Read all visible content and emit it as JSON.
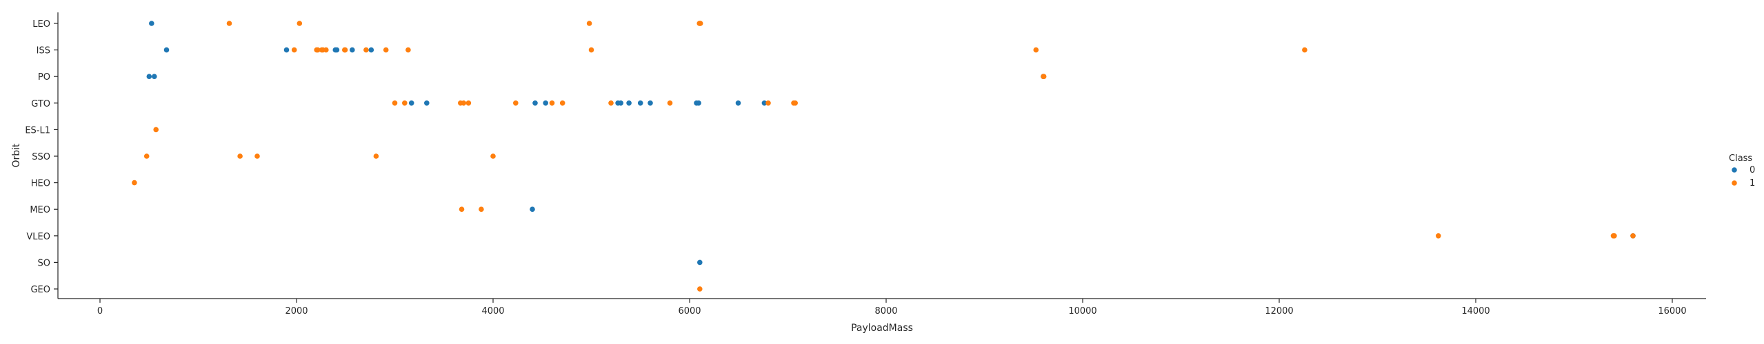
{
  "chart_data": {
    "type": "scatter",
    "title": "",
    "xlabel": "PayloadMass",
    "ylabel": "Orbit",
    "xlim": [
      -2000,
      16400
    ],
    "x_ticks": [
      0,
      2000,
      4000,
      6000,
      8000,
      10000,
      12000,
      14000,
      16000
    ],
    "x_tick_labels": [
      "0",
      "2000",
      "4000",
      "6000",
      "8000",
      "10000",
      "12000",
      "14000",
      "16000"
    ],
    "categories": [
      "LEO",
      "ISS",
      "PO",
      "GTO",
      "ES-L1",
      "SSO",
      "HEO",
      "MEO",
      "VLEO",
      "SO",
      "GEO"
    ],
    "grid": false,
    "legend": {
      "title": "Class",
      "position": "right"
    },
    "colors": {
      "0": "#1f77b4",
      "1": "#ff7f0e"
    },
    "series": [
      {
        "name": "0",
        "points": [
          {
            "x": 525,
            "y": "LEO"
          },
          {
            "x": 677,
            "y": "ISS"
          },
          {
            "x": 1898,
            "y": "ISS"
          },
          {
            "x": 2395,
            "y": "ISS"
          },
          {
            "x": 2410,
            "y": "ISS"
          },
          {
            "x": 2567,
            "y": "ISS"
          },
          {
            "x": 2760,
            "y": "ISS"
          },
          {
            "x": 500,
            "y": "PO"
          },
          {
            "x": 553,
            "y": "PO"
          },
          {
            "x": 9600,
            "y": "PO"
          },
          {
            "x": 3170,
            "y": "GTO"
          },
          {
            "x": 3325,
            "y": "GTO"
          },
          {
            "x": 4428,
            "y": "GTO"
          },
          {
            "x": 4535,
            "y": "GTO"
          },
          {
            "x": 5271,
            "y": "GTO"
          },
          {
            "x": 5300,
            "y": "GTO"
          },
          {
            "x": 5383,
            "y": "GTO"
          },
          {
            "x": 5500,
            "y": "GTO"
          },
          {
            "x": 5600,
            "y": "GTO"
          },
          {
            "x": 6070,
            "y": "GTO"
          },
          {
            "x": 6092,
            "y": "GTO"
          },
          {
            "x": 6495,
            "y": "GTO"
          },
          {
            "x": 6761,
            "y": "GTO"
          },
          {
            "x": 4400,
            "y": "MEO"
          },
          {
            "x": 15600,
            "y": "VLEO"
          },
          {
            "x": 6104,
            "y": "SO"
          }
        ]
      },
      {
        "name": "1",
        "points": [
          {
            "x": 1316,
            "y": "LEO"
          },
          {
            "x": 2030,
            "y": "LEO"
          },
          {
            "x": 4980,
            "y": "LEO"
          },
          {
            "x": 6100,
            "y": "LEO"
          },
          {
            "x": 6105,
            "y": "LEO"
          },
          {
            "x": 6110,
            "y": "LEO"
          },
          {
            "x": 1977,
            "y": "ISS"
          },
          {
            "x": 2205,
            "y": "ISS"
          },
          {
            "x": 2216,
            "y": "ISS"
          },
          {
            "x": 2257,
            "y": "ISS"
          },
          {
            "x": 2268,
            "y": "ISS"
          },
          {
            "x": 2300,
            "y": "ISS"
          },
          {
            "x": 2490,
            "y": "ISS"
          },
          {
            "x": 2495,
            "y": "ISS"
          },
          {
            "x": 2708,
            "y": "ISS"
          },
          {
            "x": 2910,
            "y": "ISS"
          },
          {
            "x": 3136,
            "y": "ISS"
          },
          {
            "x": 5000,
            "y": "ISS"
          },
          {
            "x": 9525,
            "y": "ISS"
          },
          {
            "x": 12259,
            "y": "ISS"
          },
          {
            "x": 9600,
            "y": "PO"
          },
          {
            "x": 9605,
            "y": "PO"
          },
          {
            "x": 3000,
            "y": "GTO"
          },
          {
            "x": 3100,
            "y": "GTO"
          },
          {
            "x": 3669,
            "y": "GTO"
          },
          {
            "x": 3700,
            "y": "GTO"
          },
          {
            "x": 3750,
            "y": "GTO"
          },
          {
            "x": 4230,
            "y": "GTO"
          },
          {
            "x": 4600,
            "y": "GTO"
          },
          {
            "x": 4707,
            "y": "GTO"
          },
          {
            "x": 5200,
            "y": "GTO"
          },
          {
            "x": 5800,
            "y": "GTO"
          },
          {
            "x": 6800,
            "y": "GTO"
          },
          {
            "x": 7060,
            "y": "GTO"
          },
          {
            "x": 7075,
            "y": "GTO"
          },
          {
            "x": 570,
            "y": "ES-L1"
          },
          {
            "x": 475,
            "y": "SSO"
          },
          {
            "x": 1425,
            "y": "SSO"
          },
          {
            "x": 1600,
            "y": "SSO"
          },
          {
            "x": 2810,
            "y": "SSO"
          },
          {
            "x": 4000,
            "y": "SSO"
          },
          {
            "x": 350,
            "y": "HEO"
          },
          {
            "x": 3681,
            "y": "MEO"
          },
          {
            "x": 3880,
            "y": "MEO"
          },
          {
            "x": 13620,
            "y": "VLEO"
          },
          {
            "x": 15400,
            "y": "VLEO"
          },
          {
            "x": 15410,
            "y": "VLEO"
          },
          {
            "x": 15600,
            "y": "VLEO"
          },
          {
            "x": 6104,
            "y": "GEO"
          }
        ]
      }
    ]
  }
}
